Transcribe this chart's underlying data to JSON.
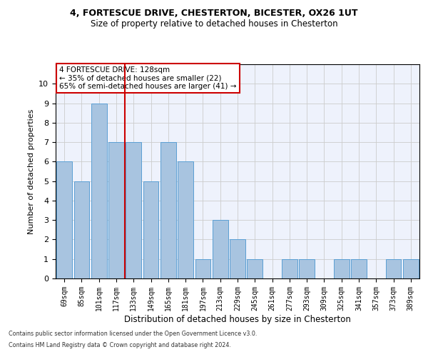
{
  "title1": "4, FORTESCUE DRIVE, CHESTERTON, BICESTER, OX26 1UT",
  "title2": "Size of property relative to detached houses in Chesterton",
  "xlabel": "Distribution of detached houses by size in Chesterton",
  "ylabel": "Number of detached properties",
  "categories": [
    "69sqm",
    "85sqm",
    "101sqm",
    "117sqm",
    "133sqm",
    "149sqm",
    "165sqm",
    "181sqm",
    "197sqm",
    "213sqm",
    "229sqm",
    "245sqm",
    "261sqm",
    "277sqm",
    "293sqm",
    "309sqm",
    "325sqm",
    "341sqm",
    "357sqm",
    "373sqm",
    "389sqm"
  ],
  "values": [
    6,
    5,
    9,
    7,
    7,
    5,
    7,
    6,
    1,
    3,
    2,
    1,
    0,
    1,
    1,
    0,
    1,
    1,
    0,
    1,
    1
  ],
  "bar_color": "#a8c4e0",
  "bar_edgecolor": "#5a9fd4",
  "grid_color": "#cccccc",
  "bg_color": "#eef2fc",
  "vline_x": 3.5,
  "vline_color": "#cc0000",
  "annotation_line1": "4 FORTESCUE DRIVE: 128sqm",
  "annotation_line2": "← 35% of detached houses are smaller (22)",
  "annotation_line3": "65% of semi-detached houses are larger (41) →",
  "annotation_box_color": "#cc0000",
  "ylim": [
    0,
    11
  ],
  "yticks": [
    0,
    1,
    2,
    3,
    4,
    5,
    6,
    7,
    8,
    9,
    10
  ],
  "footer1": "Contains HM Land Registry data © Crown copyright and database right 2024.",
  "footer2": "Contains public sector information licensed under the Open Government Licence v3.0."
}
